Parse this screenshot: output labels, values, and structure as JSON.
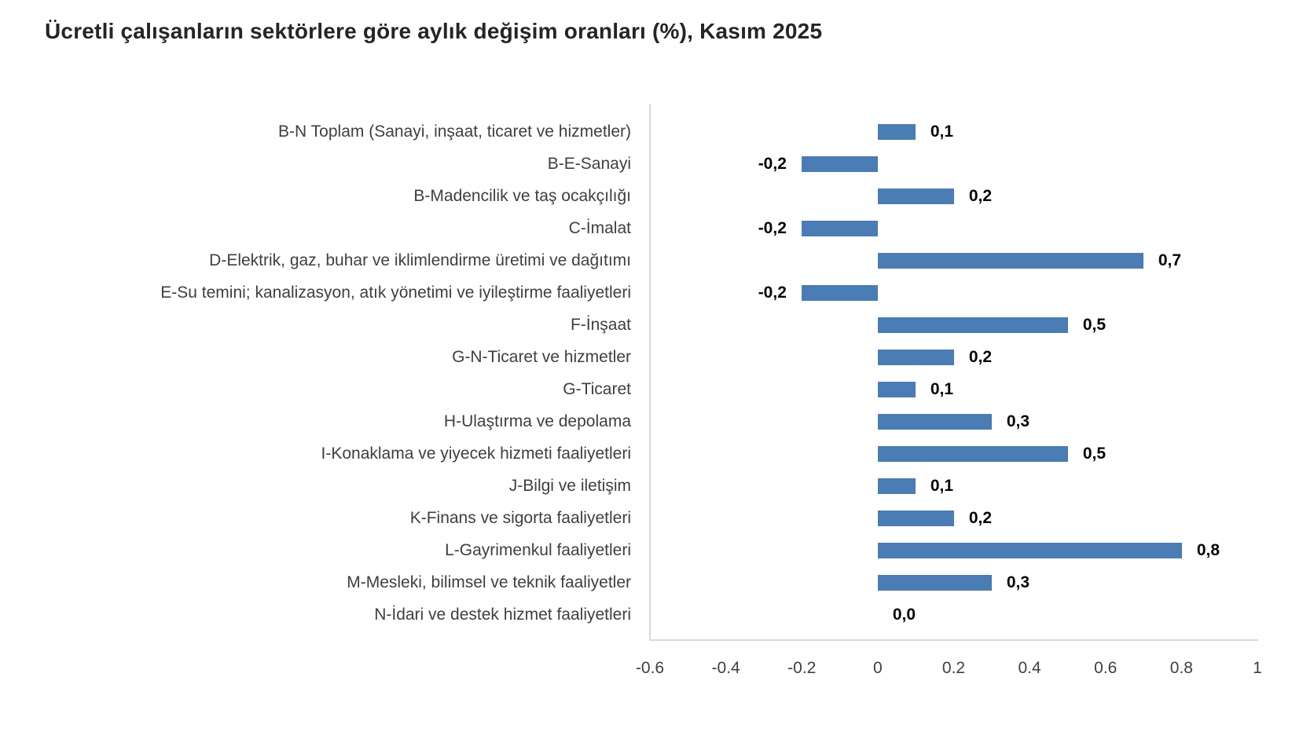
{
  "header": {
    "title": "Ücretli çalışanların sektörlere göre aylık değişim oranları (%), Kasım 2025"
  },
  "chart_data": {
    "type": "bar",
    "orientation": "horizontal",
    "title": "Ücretli çalışanların sektörlere göre aylık değişim oranları (%), Kasım 2025",
    "categories": [
      "B-N Toplam (Sanayi, inşaat, ticaret ve hizmetler)",
      "B-E-Sanayi",
      "B-Madencilik ve taş ocakçılığı",
      "C-İmalat",
      "D-Elektrik, gaz, buhar ve iklimlendirme üretimi ve dağıtımı",
      "E-Su temini; kanalizasyon, atık yönetimi ve iyileştirme faaliyetleri",
      "F-İnşaat",
      "G-N-Ticaret ve hizmetler",
      "G-Ticaret",
      "H-Ulaştırma ve depolama",
      "I-Konaklama ve yiyecek hizmeti faaliyetleri",
      "J-Bilgi ve iletişim",
      "K-Finans ve sigorta faaliyetleri",
      "L-Gayrimenkul faaliyetleri",
      "M-Mesleki, bilimsel ve teknik faaliyetler",
      "N-İdari ve destek hizmet faaliyetleri"
    ],
    "values": [
      0.1,
      -0.2,
      0.2,
      -0.2,
      0.7,
      -0.2,
      0.5,
      0.2,
      0.1,
      0.3,
      0.5,
      0.1,
      0.2,
      0.8,
      0.3,
      0.0
    ],
    "value_labels": [
      "0,1",
      "-0,2",
      "0,2",
      "-0,2",
      "0,7",
      "-0,2",
      "0,5",
      "0,2",
      "0,1",
      "0,3",
      "0,5",
      "0,1",
      "0,2",
      "0,8",
      "0,3",
      "0,0"
    ],
    "xlabel": "",
    "ylabel": "",
    "xlim": [
      -0.6,
      1.0
    ],
    "x_tick_values": [
      -0.6,
      -0.4,
      -0.2,
      0,
      0.2,
      0.4,
      0.6,
      0.8,
      1
    ],
    "x_tick_labels": [
      "-0.6",
      "-0.4",
      "-0.2",
      "0",
      "0.2",
      "0.4",
      "0.6",
      "0.8",
      "1"
    ],
    "grid": false,
    "legend": null,
    "bar_color": "#4A7CB5",
    "axis_line_color": "#D9D9D9",
    "category_text_color": "#3F3F42",
    "value_text_color": "#050505",
    "title_text_color": "#252528"
  }
}
